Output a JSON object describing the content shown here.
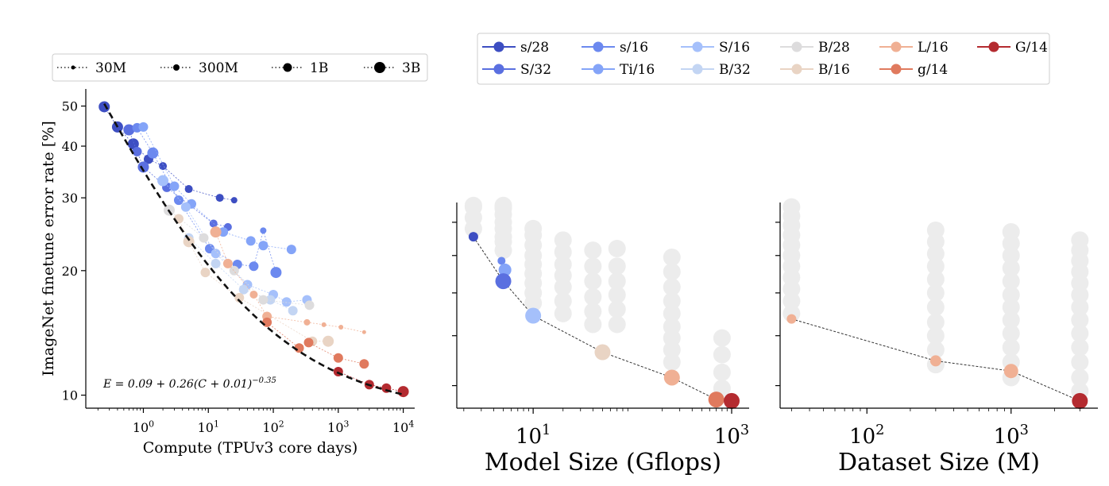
{
  "chart_data": [
    {
      "type": "scatter",
      "id": "compute",
      "xlabel": "Compute (TPUv3 core days)",
      "ylabel": "ImageNet finetune error rate [%]",
      "xscale": "log",
      "yscale": "log",
      "xlim": [
        0.13,
        15000
      ],
      "ylim": [
        9.3,
        55
      ],
      "xticks": [
        {
          "v": 1,
          "b": "10",
          "e": "0"
        },
        {
          "v": 10,
          "b": "10",
          "e": "1"
        },
        {
          "v": 100,
          "b": "10",
          "e": "2"
        },
        {
          "v": 1000,
          "b": "10",
          "e": "3"
        },
        {
          "v": 10000,
          "b": "10",
          "e": "4"
        }
      ],
      "yticks": [
        {
          "v": 10,
          "label": "10"
        },
        {
          "v": 20,
          "label": "20"
        },
        {
          "v": 30,
          "label": "30"
        },
        {
          "v": 40,
          "label": "40"
        },
        {
          "v": 50,
          "label": "50"
        }
      ],
      "fit": {
        "a": 0.09,
        "b": 0.26,
        "c": 0.01,
        "p": -0.35,
        "x_range": [
          0.25,
          10500
        ]
      },
      "formula": {
        "main": "E = 0.09 + 0.26(C + 0.01)",
        "exp": "−0.35"
      },
      "size_legend": [
        {
          "label": "30M",
          "r": 2.5
        },
        {
          "label": "300M",
          "r": 4
        },
        {
          "label": "1B",
          "r": 5.5
        },
        {
          "label": "3B",
          "r": 7
        }
      ],
      "series": [
        {
          "name": "s/28",
          "color": "#3d4ec2",
          "points": [
            [
              0.25,
              49.8,
              7
            ],
            [
              0.4,
              44.5,
              7
            ],
            [
              0.7,
              40.5,
              7
            ],
            [
              1.2,
              37.2,
              6
            ],
            [
              2.0,
              35.8,
              5
            ],
            [
              5.0,
              31.5,
              5
            ],
            [
              15,
              30.0,
              5
            ],
            [
              25,
              29.6,
              4
            ]
          ]
        },
        {
          "name": "S/32",
          "color": "#5a6fe0",
          "points": [
            [
              0.6,
              43.8,
              7
            ],
            [
              0.8,
              38.8,
              6
            ],
            [
              1.0,
              35.6,
              7
            ],
            [
              2.3,
              31.8,
              6
            ],
            [
              12,
              26.0,
              5
            ],
            [
              20,
              25.5,
              5
            ]
          ]
        },
        {
          "name": "s/16",
          "color": "#6c89ef",
          "points": [
            [
              0.8,
              44.3,
              6
            ],
            [
              1.4,
              38.5,
              7
            ],
            [
              3.5,
              29.6,
              6
            ],
            [
              10.5,
              22.6,
              6
            ],
            [
              28,
              20.7,
              6
            ],
            [
              50,
              20.5,
              6
            ],
            [
              70,
              25.0,
              4
            ],
            [
              110,
              19.8,
              7
            ]
          ]
        },
        {
          "name": "Ti/16",
          "color": "#84a4f8",
          "points": [
            [
              1.0,
              44.5,
              6
            ],
            [
              3.0,
              32.0,
              6
            ],
            [
              5.5,
              29.0,
              6
            ],
            [
              17,
              24.8,
              6
            ],
            [
              45,
              23.6,
              6
            ],
            [
              70,
              23.0,
              6
            ],
            [
              190,
              22.5,
              6
            ]
          ]
        },
        {
          "name": "S/16",
          "color": "#a5c0fb",
          "points": [
            [
              2.0,
              33.0,
              7
            ],
            [
              4.5,
              28.5,
              6
            ],
            [
              13,
              22.0,
              6
            ],
            [
              40,
              18.5,
              6
            ],
            [
              100,
              17.5,
              6
            ],
            [
              160,
              16.8,
              6
            ],
            [
              330,
              17.0,
              6
            ]
          ]
        },
        {
          "name": "B/32",
          "color": "#c3d5f3",
          "points": [
            [
              5.0,
              24.0,
              6
            ],
            [
              13,
              20.8,
              6
            ],
            [
              35,
              18.0,
              6
            ],
            [
              90,
              17.0,
              6
            ],
            [
              200,
              16.0,
              6
            ]
          ]
        },
        {
          "name": "B/28",
          "color": "#dddcdd",
          "points": [
            [
              2.5,
              28.0,
              7
            ],
            [
              8.5,
              24.0,
              6
            ],
            [
              25,
              20.0,
              6
            ],
            [
              70,
              17.0,
              6
            ],
            [
              360,
              16.5,
              6
            ]
          ]
        },
        {
          "name": "B/16",
          "color": "#e9d4c4",
          "points": [
            [
              3.5,
              26.7,
              6
            ],
            [
              5.0,
              23.5,
              7
            ],
            [
              9.0,
              19.8,
              6
            ],
            [
              30,
              17.2,
              6
            ],
            [
              400,
              13.5,
              6
            ],
            [
              700,
              13.5,
              7
            ]
          ]
        },
        {
          "name": "L/16",
          "color": "#f0b094",
          "points": [
            [
              13,
              24.8,
              7
            ],
            [
              20,
              20.8,
              6
            ],
            [
              50,
              17.5,
              5
            ],
            [
              80,
              15.5,
              6
            ],
            [
              330,
              15.0,
              4
            ],
            [
              600,
              14.8,
              3
            ],
            [
              1100,
              14.6,
              3
            ],
            [
              2500,
              14.2,
              2.5
            ]
          ]
        },
        {
          "name": "g/14",
          "color": "#e07a5e",
          "points": [
            [
              80,
              15.0,
              6
            ],
            [
              250,
              13.0,
              6
            ],
            [
              350,
              13.4,
              6
            ],
            [
              1000,
              12.3,
              6
            ],
            [
              2500,
              11.9,
              6
            ]
          ]
        },
        {
          "name": "G/14",
          "color": "#b42b30",
          "points": [
            [
              1000,
              11.4,
              6
            ],
            [
              3000,
              10.6,
              6
            ],
            [
              5500,
              10.4,
              6
            ],
            [
              10000,
              10.2,
              7
            ]
          ]
        }
      ]
    },
    {
      "type": "scatter",
      "id": "model-size",
      "xlabel": "Model Size (Gflops)",
      "xscale": "log",
      "xlim": [
        1.7,
        1500
      ],
      "xticks": [
        {
          "v": 10,
          "b": "10",
          "e": "1"
        },
        {
          "v": 1000,
          "b": "10",
          "e": "3"
        }
      ],
      "ylim": [
        10.2,
        20.3
      ],
      "gray_columns": [
        {
          "x": 2.5,
          "y": [
            18.6,
            19.3,
            20.1,
            20.0
          ]
        },
        {
          "x": 5,
          "y": [
            17.3,
            17.8,
            18.1,
            18.6,
            19.0,
            19.5,
            19.9,
            20.1,
            20.0
          ]
        },
        {
          "x": 10,
          "y": [
            14.5,
            15.0,
            15.5,
            16.0,
            16.5,
            17.0,
            17.6,
            18.2,
            18.6
          ]
        },
        {
          "x": 20,
          "y": [
            14.0,
            14.6,
            15.3,
            15.9,
            16.5,
            17.2,
            17.9
          ]
        },
        {
          "x": 40,
          "y": [
            13.5,
            14.1,
            14.8,
            15.6,
            16.4,
            17.3
          ]
        },
        {
          "x": 70,
          "y": [
            13.5,
            14.2,
            14.9,
            15.6,
            16.4,
            17.4
          ]
        },
        {
          "x": 250,
          "y": [
            11.9,
            12.4,
            12.9,
            13.4,
            14.0,
            14.6,
            15.3,
            16.1,
            16.9
          ]
        },
        {
          "x": 800,
          "y": [
            10.9,
            11.5,
            12.2,
            12.9
          ]
        }
      ],
      "frontier": [
        {
          "x": 2.5,
          "y": 18.1,
          "r": 6,
          "color": "#3d4ec2"
        },
        {
          "x": 5,
          "y": 15.6,
          "r": 10,
          "color": "#5a6fe0"
        },
        {
          "x": 10,
          "y": 13.9,
          "r": 10,
          "color": "#a5c0fb"
        },
        {
          "x": 50,
          "y": 12.3,
          "r": 10,
          "color": "#e9d4c4"
        },
        {
          "x": 250,
          "y": 11.3,
          "r": 10,
          "color": "#f0b094"
        },
        {
          "x": 700,
          "y": 10.5,
          "r": 10,
          "color": "#e07a5e"
        },
        {
          "x": 1000,
          "y": 10.45,
          "r": 10,
          "color": "#b42b30"
        }
      ],
      "extra_points": [
        {
          "x": 4.8,
          "y": 16.7,
          "r": 5,
          "color": "#6c89ef"
        },
        {
          "x": 5.2,
          "y": 16.2,
          "r": 8,
          "color": "#84a4f8"
        }
      ]
    },
    {
      "type": "scatter",
      "id": "dataset-size",
      "xlabel": "Dataset Size (M)",
      "xscale": "log",
      "xlim": [
        25,
        4000
      ],
      "xticks": [
        {
          "v": 100,
          "b": "10",
          "e": "2"
        },
        {
          "v": 1000,
          "b": "10",
          "e": "3"
        }
      ],
      "ylim": [
        10.2,
        20.3
      ],
      "gray_columns": [
        {
          "x": 30,
          "y": [
            14.0,
            14.6,
            15.2,
            15.8,
            16.4,
            17.0,
            17.6,
            18.2,
            18.8,
            19.4,
            20.0
          ]
        },
        {
          "x": 300,
          "y": [
            11.8,
            12.4,
            13.0,
            13.6,
            14.3,
            15.0,
            15.7,
            16.4,
            17.1,
            17.8,
            18.5
          ]
        },
        {
          "x": 1000,
          "y": [
            11.3,
            11.9,
            12.5,
            13.1,
            13.7,
            14.3,
            14.9,
            15.6,
            16.3,
            17.0,
            17.7,
            18.4
          ]
        },
        {
          "x": 3000,
          "y": [
            10.8,
            11.3,
            11.9,
            12.5,
            13.1,
            13.7,
            14.3,
            14.9,
            15.5,
            16.1,
            16.7,
            17.3,
            17.9
          ]
        }
      ],
      "frontier": [
        {
          "x": 30,
          "y": 13.75,
          "r": 6,
          "color": "#f0b094"
        },
        {
          "x": 300,
          "y": 11.95,
          "r": 7,
          "color": "#f0b094"
        },
        {
          "x": 1000,
          "y": 11.55,
          "r": 9,
          "color": "#f0b094"
        },
        {
          "x": 3000,
          "y": 10.45,
          "r": 10,
          "color": "#b42b30"
        }
      ]
    }
  ],
  "model_legend": [
    {
      "label": "s/28",
      "color": "#3d4ec2"
    },
    {
      "label": "S/32",
      "color": "#5a6fe0"
    },
    {
      "label": "s/16",
      "color": "#6c89ef"
    },
    {
      "label": "Ti/16",
      "color": "#84a4f8"
    },
    {
      "label": "S/16",
      "color": "#a5c0fb"
    },
    {
      "label": "B/32",
      "color": "#c3d5f3"
    },
    {
      "label": "B/28",
      "color": "#dddcdd"
    },
    {
      "label": "B/16",
      "color": "#e9d4c4"
    },
    {
      "label": "L/16",
      "color": "#f0b094"
    },
    {
      "label": "g/14",
      "color": "#e07a5e"
    },
    {
      "label": "G/14",
      "color": "#b42b30"
    }
  ],
  "colors": {
    "gray": "#ececec",
    "fit": "#111111",
    "axis": "#000000",
    "frontier_line": "#333333"
  }
}
